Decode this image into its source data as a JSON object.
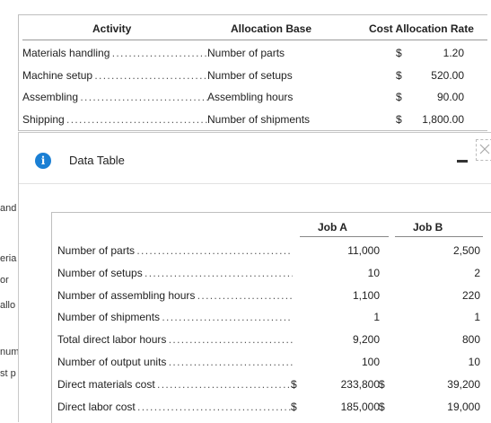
{
  "background": {
    "fragments": [
      "and",
      "eria",
      "or",
      "allo",
      "num",
      "st p"
    ]
  },
  "allocation_table": {
    "headers": {
      "activity": "Activity",
      "base": "Allocation Base",
      "rate": "Cost Allocation Rate"
    },
    "rows": [
      {
        "activity": "Materials handling",
        "base": "Number of parts",
        "currency": "$",
        "rate": "1.20"
      },
      {
        "activity": "Machine setup",
        "base": "Number of setups",
        "currency": "$",
        "rate": "520.00"
      },
      {
        "activity": "Assembling",
        "base": "Assembling hours",
        "currency": "$",
        "rate": "90.00"
      },
      {
        "activity": "Shipping",
        "base": "Number of shipments",
        "currency": "$",
        "rate": "1,800.00"
      }
    ]
  },
  "dialog": {
    "title": "Data Table",
    "icons": {
      "info": "info-icon",
      "minimize": "minimize-icon",
      "close": "close-icon"
    },
    "accent": "#1a7fd4",
    "headers": {
      "job_a": "Job A",
      "job_b": "Job B"
    },
    "rows": [
      {
        "label": "Number of parts",
        "cur_a": "",
        "a": "11,000",
        "cur_b": "",
        "b": "2,500"
      },
      {
        "label": "Number of setups",
        "cur_a": "",
        "a": "10",
        "cur_b": "",
        "b": "2"
      },
      {
        "label": "Number of assembling hours",
        "cur_a": "",
        "a": "1,100",
        "cur_b": "",
        "b": "220"
      },
      {
        "label": "Number of shipments",
        "cur_a": "",
        "a": "1",
        "cur_b": "",
        "b": "1"
      },
      {
        "label": "Total direct labor hours",
        "cur_a": "",
        "a": "9,200",
        "cur_b": "",
        "b": "800"
      },
      {
        "label": "Number of output units",
        "cur_a": "",
        "a": "100",
        "cur_b": "",
        "b": "10"
      },
      {
        "label": "Direct materials cost",
        "cur_a": "$",
        "a": "233,800",
        "cur_b": "$",
        "b": "39,200"
      },
      {
        "label": "Direct labor cost",
        "cur_a": "$",
        "a": "185,000",
        "cur_b": "$",
        "b": "19,000"
      }
    ]
  }
}
